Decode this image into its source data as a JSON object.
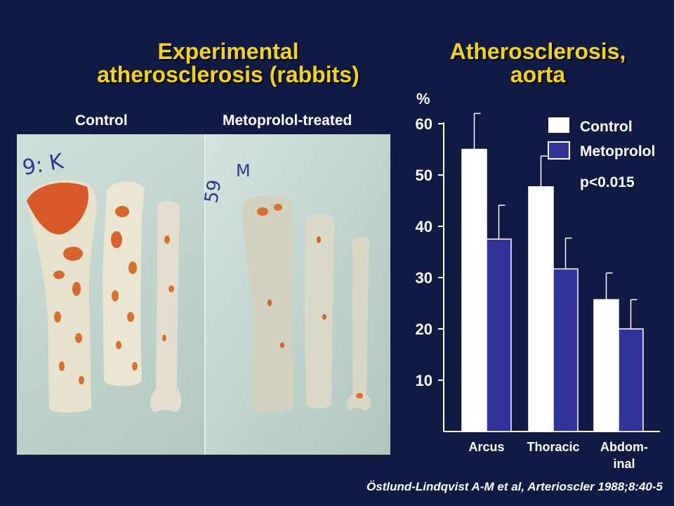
{
  "slide": {
    "title_left_line1": "Experimental",
    "title_left_line2": "atherosclerosis (rabbits)",
    "title_right_line1": "Atherosclerosis,",
    "title_right_line2": "aorta",
    "photo_label_control": "Control",
    "photo_label_treated": "Metoprolol-treated",
    "citation": "Östlund-Lindqvist A-M et al, Arterioscler 1988;8:40-5",
    "specimen_mark_control": "9: K",
    "specimen_mark_treated_1": "59",
    "specimen_mark_treated_2": "M"
  },
  "colors": {
    "background": "#101a44",
    "title": "#f2d21b",
    "control_bar": "#ffffff",
    "metoprolol_bar": "#32339a",
    "photo_bg": "#b5ccc4",
    "lesion": "#d96226"
  },
  "chart_data": {
    "type": "bar",
    "y_unit_label": "%",
    "categories": [
      "Arcus",
      "Thoracic",
      "Abdom-\ninal"
    ],
    "category_labels": [
      [
        "Arcus"
      ],
      [
        "Thoracic"
      ],
      [
        "Abdom-",
        "inal"
      ]
    ],
    "series": [
      {
        "name": "Control",
        "values": [
          55,
          47.7,
          25.7
        ],
        "errors": [
          7,
          6,
          5.2
        ],
        "color": "#ffffff"
      },
      {
        "name": "Metoprolol",
        "values": [
          37.5,
          31.7,
          20
        ],
        "errors": [
          6.6,
          6,
          5.7
        ],
        "color": "#32339a"
      }
    ],
    "yticks": [
      10,
      20,
      30,
      40,
      50,
      60
    ],
    "ylim": [
      0,
      60
    ],
    "annotation": "p<0.015",
    "legend_position": "top-right",
    "grid": false
  }
}
